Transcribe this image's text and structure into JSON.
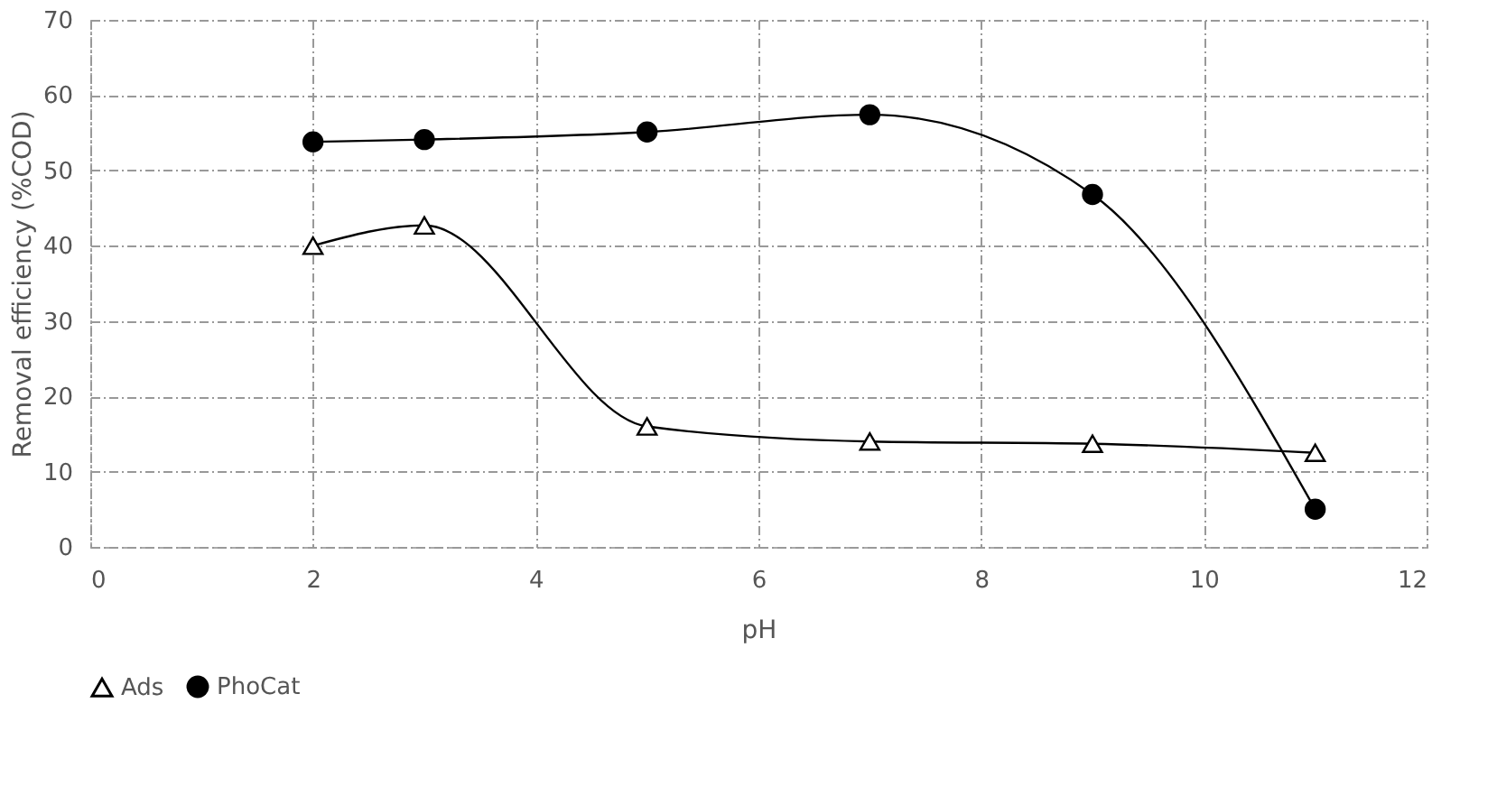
{
  "chart_data": {
    "type": "line",
    "xlabel": "pH",
    "ylabel": "Removal efficiency (%COD)",
    "x": [
      2,
      3,
      5,
      7,
      9,
      11
    ],
    "series": [
      {
        "name": "Ads",
        "color": "#000000",
        "marker": "triangle",
        "values": [
          40,
          42.7,
          16,
          14,
          13.7,
          12.5
        ]
      },
      {
        "name": "PhoCat",
        "color": "#000000",
        "marker": "circle",
        "values": [
          53.8,
          54.1,
          55.1,
          57.4,
          46.8,
          5
        ]
      }
    ],
    "xlim": [
      0,
      12
    ],
    "xticks": [
      0,
      2,
      4,
      6,
      8,
      10,
      12
    ],
    "ylim": [
      0,
      70
    ],
    "yticks": [
      0,
      10,
      20,
      30,
      40,
      50,
      60,
      70
    ],
    "grid": true,
    "legend": "bottom"
  }
}
